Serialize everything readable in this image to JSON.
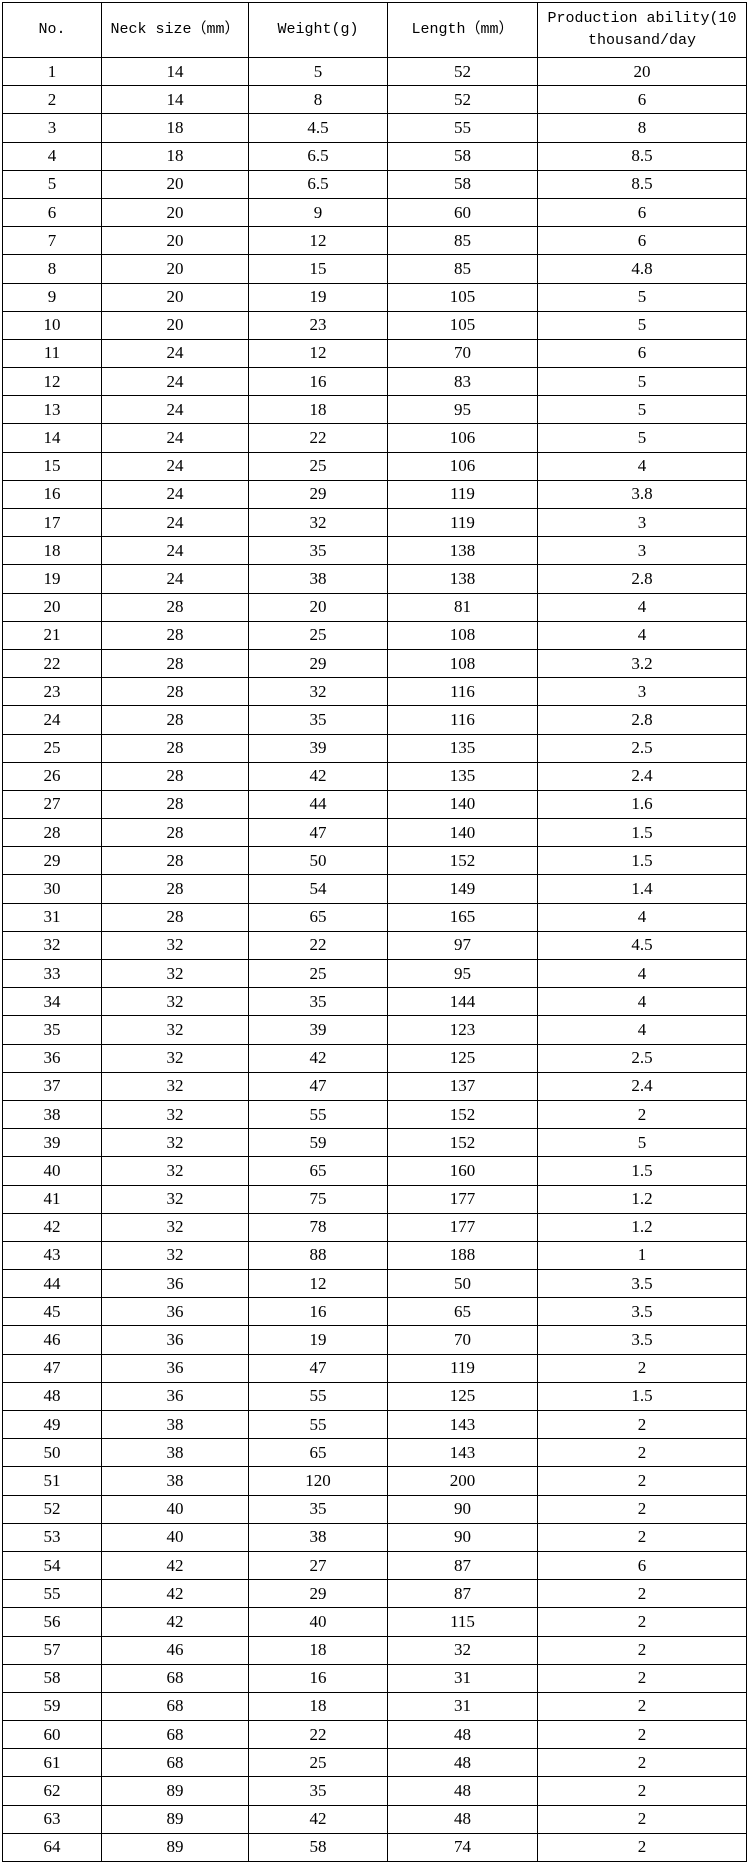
{
  "table": {
    "header": [
      "No.",
      "Neck size（mm）",
      "Weight(g)",
      "Length（mm）",
      "Production ability(10 thousand/day"
    ],
    "rows": [
      [
        1,
        14,
        5,
        52,
        20
      ],
      [
        2,
        14,
        8,
        52,
        6
      ],
      [
        3,
        18,
        4.5,
        55,
        8
      ],
      [
        4,
        18,
        6.5,
        58,
        8.5
      ],
      [
        5,
        20,
        6.5,
        58,
        8.5
      ],
      [
        6,
        20,
        9,
        60,
        6
      ],
      [
        7,
        20,
        12,
        85,
        6
      ],
      [
        8,
        20,
        15,
        85,
        4.8
      ],
      [
        9,
        20,
        19,
        105,
        5
      ],
      [
        10,
        20,
        23,
        105,
        5
      ],
      [
        11,
        24,
        12,
        70,
        6
      ],
      [
        12,
        24,
        16,
        83,
        5
      ],
      [
        13,
        24,
        18,
        95,
        5
      ],
      [
        14,
        24,
        22,
        106,
        5
      ],
      [
        15,
        24,
        25,
        106,
        4
      ],
      [
        16,
        24,
        29,
        119,
        3.8
      ],
      [
        17,
        24,
        32,
        119,
        3
      ],
      [
        18,
        24,
        35,
        138,
        3
      ],
      [
        19,
        24,
        38,
        138,
        2.8
      ],
      [
        20,
        28,
        20,
        81,
        4
      ],
      [
        21,
        28,
        25,
        108,
        4
      ],
      [
        22,
        28,
        29,
        108,
        3.2
      ],
      [
        23,
        28,
        32,
        116,
        3
      ],
      [
        24,
        28,
        35,
        116,
        2.8
      ],
      [
        25,
        28,
        39,
        135,
        2.5
      ],
      [
        26,
        28,
        42,
        135,
        2.4
      ],
      [
        27,
        28,
        44,
        140,
        1.6
      ],
      [
        28,
        28,
        47,
        140,
        1.5
      ],
      [
        29,
        28,
        50,
        152,
        1.5
      ],
      [
        30,
        28,
        54,
        149,
        1.4
      ],
      [
        31,
        28,
        65,
        165,
        4
      ],
      [
        32,
        32,
        22,
        97,
        4.5
      ],
      [
        33,
        32,
        25,
        95,
        4
      ],
      [
        34,
        32,
        35,
        144,
        4
      ],
      [
        35,
        32,
        39,
        123,
        4
      ],
      [
        36,
        32,
        42,
        125,
        2.5
      ],
      [
        37,
        32,
        47,
        137,
        2.4
      ],
      [
        38,
        32,
        55,
        152,
        2
      ],
      [
        39,
        32,
        59,
        152,
        5
      ],
      [
        40,
        32,
        65,
        160,
        1.5
      ],
      [
        41,
        32,
        75,
        177,
        1.2
      ],
      [
        42,
        32,
        78,
        177,
        1.2
      ],
      [
        43,
        32,
        88,
        188,
        1
      ],
      [
        44,
        36,
        12,
        50,
        3.5
      ],
      [
        45,
        36,
        16,
        65,
        3.5
      ],
      [
        46,
        36,
        19,
        70,
        3.5
      ],
      [
        47,
        36,
        47,
        119,
        2
      ],
      [
        48,
        36,
        55,
        125,
        1.5
      ],
      [
        49,
        38,
        55,
        143,
        2
      ],
      [
        50,
        38,
        65,
        143,
        2
      ],
      [
        51,
        38,
        120,
        200,
        2
      ],
      [
        52,
        40,
        35,
        90,
        2
      ],
      [
        53,
        40,
        38,
        90,
        2
      ],
      [
        54,
        42,
        27,
        87,
        6
      ],
      [
        55,
        42,
        29,
        87,
        2
      ],
      [
        56,
        42,
        40,
        115,
        2
      ],
      [
        57,
        46,
        18,
        32,
        2
      ],
      [
        58,
        68,
        16,
        31,
        2
      ],
      [
        59,
        68,
        18,
        31,
        2
      ],
      [
        60,
        68,
        22,
        48,
        2
      ],
      [
        61,
        68,
        25,
        48,
        2
      ],
      [
        62,
        89,
        35,
        48,
        2
      ],
      [
        63,
        89,
        42,
        48,
        2
      ],
      [
        64,
        89,
        58,
        74,
        2
      ]
    ]
  }
}
